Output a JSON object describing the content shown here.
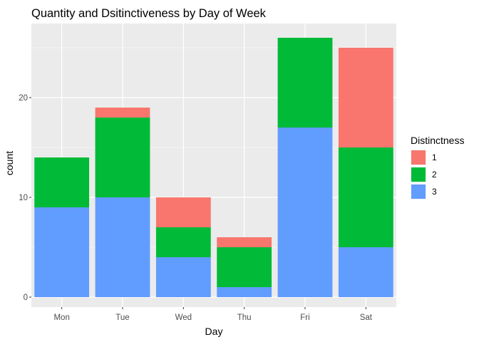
{
  "chart_data": {
    "type": "bar",
    "stacked": true,
    "title": "Quantity and Dsitinctiveness by Day of Week",
    "xlabel": "Day",
    "ylabel": "count",
    "categories": [
      "Mon",
      "Tue",
      "Wed",
      "Thu",
      "Fri",
      "Sat"
    ],
    "ylim": [
      0,
      27
    ],
    "yticks": [
      0,
      10,
      20
    ],
    "legend": {
      "title": "Distinctness",
      "position": "right"
    },
    "series": [
      {
        "name": "3",
        "color": "#619CFF",
        "values": [
          9,
          10,
          4,
          1,
          17,
          5
        ]
      },
      {
        "name": "2",
        "color": "#00BA38",
        "values": [
          5,
          8,
          3,
          4,
          9,
          10
        ]
      },
      {
        "name": "1",
        "color": "#F8766D",
        "values": [
          0,
          1,
          3,
          1,
          0,
          10
        ]
      }
    ],
    "legend_order": [
      "1",
      "2",
      "3"
    ],
    "grid": true,
    "panel_background": "#EBEBEB",
    "grid_color": "#FFFFFF"
  }
}
